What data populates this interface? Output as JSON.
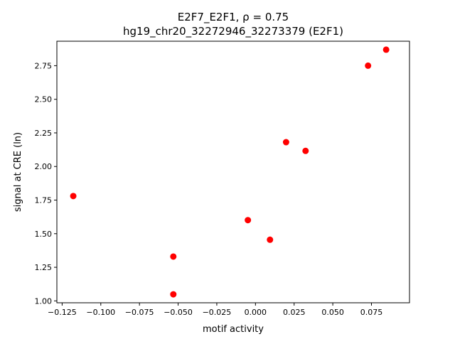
{
  "chart_data": {
    "type": "scatter",
    "title_line1": "E2F7_E2F1, ρ = 0.75",
    "title_line2": "hg19_chr20_32272946_32273379 (E2F1)",
    "xlabel": "motif activity",
    "ylabel": "signal at CRE (ln)",
    "xlim": [
      -0.1284,
      0.0996
    ],
    "ylim": [
      0.986,
      2.932
    ],
    "xticks": [
      -0.125,
      -0.1,
      -0.075,
      -0.05,
      -0.025,
      0.0,
      0.025,
      0.05,
      0.075
    ],
    "xtick_labels": [
      "−0.125",
      "−0.100",
      "−0.075",
      "−0.050",
      "−0.025",
      "0.000",
      "0.025",
      "0.050",
      "0.075"
    ],
    "yticks": [
      1.0,
      1.25,
      1.5,
      1.75,
      2.0,
      2.25,
      2.5,
      2.75
    ],
    "ytick_labels": [
      "1.00",
      "1.25",
      "1.50",
      "1.75",
      "2.00",
      "2.25",
      "2.50",
      "2.75"
    ],
    "grid": false,
    "marker_color": "#ff0000",
    "points": [
      {
        "x": -0.1178,
        "y": 1.78
      },
      {
        "x": -0.0531,
        "y": 1.049
      },
      {
        "x": -0.0531,
        "y": 1.33
      },
      {
        "x": -0.0049,
        "y": 1.601
      },
      {
        "x": 0.0094,
        "y": 1.455
      },
      {
        "x": 0.0198,
        "y": 2.181
      },
      {
        "x": 0.0324,
        "y": 2.116
      },
      {
        "x": 0.0728,
        "y": 2.75
      },
      {
        "x": 0.0845,
        "y": 2.869
      }
    ]
  }
}
